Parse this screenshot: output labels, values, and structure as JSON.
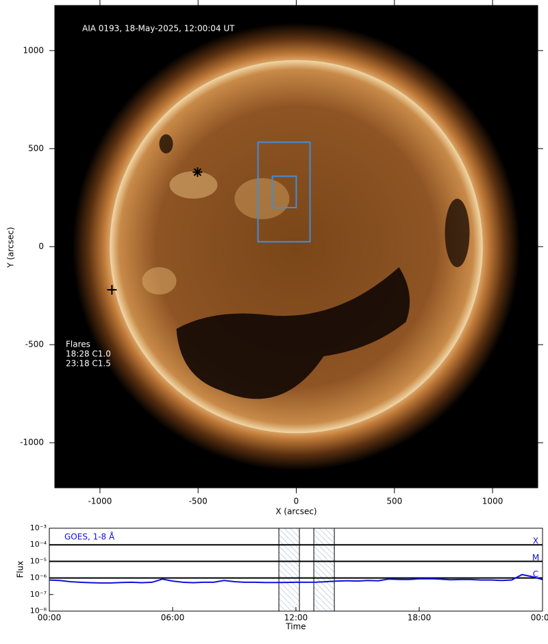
{
  "chart_data": [
    {
      "type": "image",
      "title": "AIA 0193, 18-May-2025, 12:00:04 UT",
      "x_label": "X (arcsec)",
      "y_label": "Y (arcsec)",
      "xlim": [
        -1230,
        1230
      ],
      "ylim": [
        -1230,
        1230
      ],
      "xticks": [
        -1000,
        -500,
        0,
        500,
        1000
      ],
      "yticks": [
        1000,
        500,
        0,
        -500,
        -1000
      ],
      "flares_title": "Flares",
      "flares": [
        "18:28 C1.0",
        "23:18 C1.5"
      ],
      "regions": [
        {
          "x": [
            -195,
            70
          ],
          "y": [
            25,
            533
          ],
          "color": "#3d8ee0"
        },
        {
          "x": [
            -122,
            0
          ],
          "y": [
            199,
            359
          ],
          "color": "#3d8ee0"
        }
      ],
      "markers": [
        {
          "x": -503,
          "y": 380,
          "symbol": "asterisk"
        },
        {
          "x": -939,
          "y": -220,
          "symbol": "plus"
        }
      ]
    },
    {
      "type": "line",
      "x_label": "Time",
      "y_label": "Flux",
      "yscale": "log",
      "xlim": [
        0,
        24
      ],
      "ylim": [
        1e-08,
        0.001
      ],
      "xticks": [
        {
          "value": 0,
          "label": "00:00"
        },
        {
          "value": 6,
          "label": "06:00"
        },
        {
          "value": 12,
          "label": "12:00"
        },
        {
          "value": 18,
          "label": "18:00"
        },
        {
          "value": 24,
          "label": "00:00"
        }
      ],
      "yticks": [
        {
          "value": 0.001,
          "label": "10⁻³"
        },
        {
          "value": 0.0001,
          "label": "10⁻⁴"
        },
        {
          "value": 1e-05,
          "label": "10⁻⁵"
        },
        {
          "value": 1e-06,
          "label": "10⁻⁶"
        },
        {
          "value": 1e-07,
          "label": "10⁻⁷"
        },
        {
          "value": 1e-08,
          "label": "10⁻⁸"
        }
      ],
      "levels": [
        {
          "value": 0.0001,
          "label": "X"
        },
        {
          "value": 1e-05,
          "label": "M"
        },
        {
          "value": 1e-06,
          "label": "C"
        }
      ],
      "shaded": [
        [
          11.17,
          12.17
        ],
        [
          12.87,
          13.87
        ]
      ],
      "x": [
        0,
        0.5,
        1,
        1.5,
        2,
        2.5,
        3,
        3.5,
        4,
        4.5,
        5,
        5.5,
        6,
        6.5,
        7,
        7.5,
        8,
        8.5,
        9,
        9.5,
        10,
        10.5,
        11,
        11.5,
        12,
        12.5,
        13,
        13.5,
        14,
        14.5,
        15,
        15.5,
        16,
        16.5,
        17,
        17.5,
        18,
        18.5,
        19,
        19.5,
        20,
        20.5,
        21,
        21.5,
        22,
        22.5,
        23,
        23.5,
        24
      ],
      "series": [
        {
          "name": "GOES, 1-8 Å",
          "color": "#1010e0",
          "values": [
            7.5e-07,
            7e-07,
            6e-07,
            5.5e-07,
            5.2e-07,
            5e-07,
            5e-07,
            5.3e-07,
            5.5e-07,
            5.2e-07,
            5.5e-07,
            8.5e-07,
            6.5e-07,
            5.5e-07,
            5.2e-07,
            5.5e-07,
            5.5e-07,
            7e-07,
            6e-07,
            5.5e-07,
            5.5e-07,
            5.3e-07,
            5.3e-07,
            5.4e-07,
            5.5e-07,
            5.5e-07,
            5.6e-07,
            6e-07,
            6.5e-07,
            6.8e-07,
            6.5e-07,
            7e-07,
            6.8e-07,
            8.5e-07,
            8.2e-07,
            8e-07,
            8.8e-07,
            9e-07,
            8.5e-07,
            7.8e-07,
            8e-07,
            8e-07,
            7.5e-07,
            7.5e-07,
            7e-07,
            7.5e-07,
            1.6e-06,
            1.2e-06,
            8e-07
          ]
        }
      ]
    }
  ]
}
